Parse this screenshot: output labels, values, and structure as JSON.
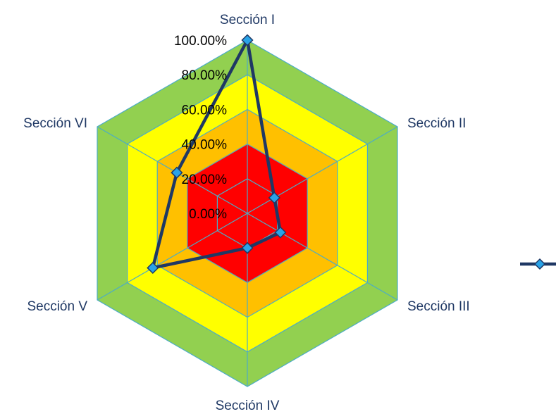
{
  "chart_data": {
    "type": "radar",
    "title": "",
    "categories": [
      "Sección I",
      "Sección II",
      "Sección III",
      "Sección IV",
      "Sección V",
      "Sección VI"
    ],
    "series": [
      {
        "values": [
          1.0,
          0.18,
          0.22,
          0.2,
          0.63,
          0.47
        ],
        "color": "#1f3864",
        "marker_color": "#29a3e8"
      }
    ],
    "r_range": [
      0,
      1.0
    ],
    "tick_labels": [
      "0.00%",
      "20.00%",
      "40.00%",
      "60.00%",
      "80.00%",
      "100.00%"
    ],
    "background_bands": [
      {
        "from": 0,
        "to": 0.4,
        "color": "#ff0000"
      },
      {
        "from": 0.4,
        "to": 0.6,
        "color": "#ffc000"
      },
      {
        "from": 0.6,
        "to": 0.8,
        "color": "#ffff00"
      },
      {
        "from": 0.8,
        "to": 1.0,
        "color": "#92d050"
      }
    ],
    "gridline_color": "#4bacc6",
    "legend_position": "right"
  }
}
